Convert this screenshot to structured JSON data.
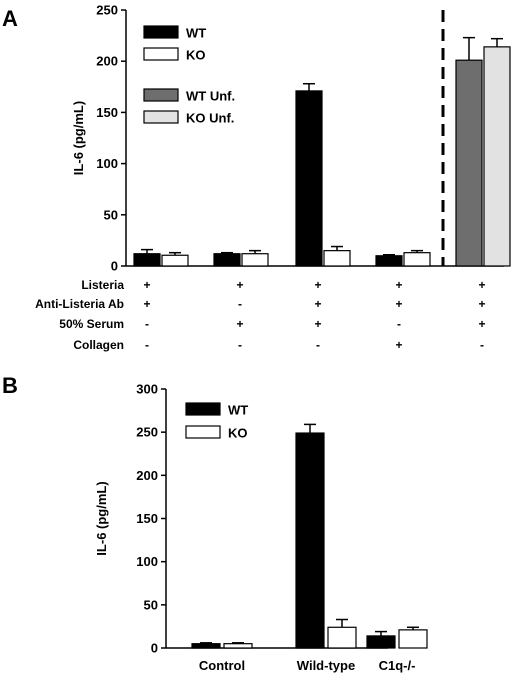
{
  "chart_data": [
    {
      "panel": "A",
      "type": "bar",
      "ylabel": "IL-6 (pg/mL)",
      "ylim": [
        0,
        250
      ],
      "yticks": [
        "0",
        "50",
        "100",
        "150",
        "200",
        "250"
      ],
      "legend_position": "top-left",
      "legend": [
        {
          "label": "WT",
          "color": "#000000"
        },
        {
          "label": "KO",
          "color": "#ffffff"
        },
        {
          "label": "WT Unf.",
          "color": "#6e6e6e"
        },
        {
          "label": "KO Unf.",
          "color": "#e2e2e2"
        }
      ],
      "groups": [
        {
          "bars": [
            {
              "series": "WT",
              "value": 12,
              "err": 4
            },
            {
              "series": "KO",
              "value": 10.5,
              "err": 2.5
            }
          ]
        },
        {
          "bars": [
            {
              "series": "WT",
              "value": 12,
              "err": 1
            },
            {
              "series": "KO",
              "value": 12,
              "err": 3
            }
          ]
        },
        {
          "bars": [
            {
              "series": "WT",
              "value": 171,
              "err": 7
            },
            {
              "series": "KO",
              "value": 15,
              "err": 4
            }
          ]
        },
        {
          "bars": [
            {
              "series": "WT",
              "value": 10,
              "err": 1
            },
            {
              "series": "KO",
              "value": 13,
              "err": 2
            }
          ]
        },
        {
          "bars": [
            {
              "series": "WT Unf.",
              "value": 201,
              "err": 22
            },
            {
              "series": "KO Unf.",
              "value": 214,
              "err": 8
            }
          ]
        }
      ],
      "separator": "dashed vertical line before last group",
      "conditions": [
        {
          "label": "Listeria",
          "signs": [
            "+",
            "+",
            "+",
            "+",
            "+"
          ]
        },
        {
          "label": "Anti-Listeria Ab",
          "signs": [
            "+",
            "-",
            "+",
            "+",
            "+"
          ]
        },
        {
          "label": "50% Serum",
          "signs": [
            "-",
            "+",
            "+",
            "-",
            "+"
          ]
        },
        {
          "label": "Collagen",
          "signs": [
            "-",
            "-",
            "-",
            "+",
            "-"
          ]
        }
      ]
    },
    {
      "panel": "B",
      "type": "bar",
      "ylabel": "IL-6 (pg/mL)",
      "ylim": [
        0,
        300
      ],
      "yticks": [
        "0",
        "50",
        "100",
        "150",
        "200",
        "250",
        "300"
      ],
      "legend_position": "top-left",
      "legend": [
        {
          "label": "WT",
          "color": "#000000"
        },
        {
          "label": "KO",
          "color": "#ffffff"
        }
      ],
      "categories": [
        "Control",
        "Wild-type",
        "C1q-/-"
      ],
      "series": [
        {
          "name": "WT",
          "values": [
            5,
            249,
            14
          ],
          "errors": [
            1,
            10,
            5
          ]
        },
        {
          "name": "KO",
          "values": [
            5,
            24,
            21
          ],
          "errors": [
            1,
            9,
            3
          ]
        }
      ]
    }
  ]
}
